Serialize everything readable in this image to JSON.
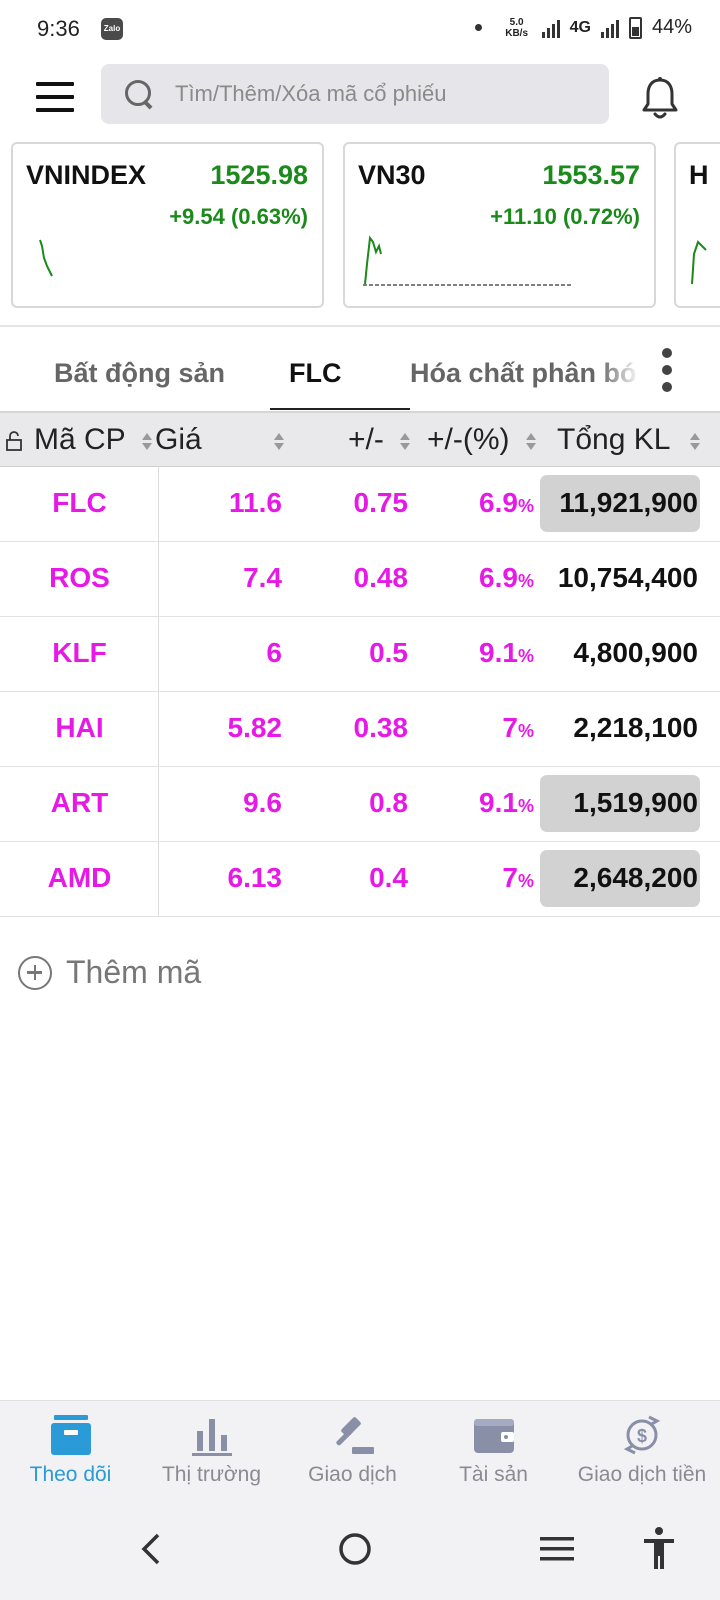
{
  "status_bar": {
    "time": "9:36",
    "notification_app": "Zalo",
    "speed_value": "5.0",
    "speed_unit": "KB/s",
    "network": "4G",
    "battery": "44%"
  },
  "search": {
    "placeholder": "Tìm/Thêm/Xóa mã cổ phiếu"
  },
  "index_cards": [
    {
      "name": "VNINDEX",
      "value": "1525.98",
      "change": "+9.54 (0.63%)"
    },
    {
      "name": "VN30",
      "value": "1553.57",
      "change": "+11.10 (0.72%)"
    },
    {
      "name": "H",
      "value": "",
      "change": ""
    }
  ],
  "tabs": [
    {
      "label": "Bất động sản",
      "active": false
    },
    {
      "label": "FLC",
      "active": true
    },
    {
      "label": "Hóa chất phân bó",
      "active": false
    }
  ],
  "table": {
    "headers": {
      "symbol": "Mã CP",
      "price": "Giá",
      "change": "+/-",
      "change_pct": "+/-(%)",
      "volume": "Tổng KL"
    },
    "pct_suffix": "%",
    "rows": [
      {
        "symbol": "FLC",
        "price": "11.6",
        "change": "0.75",
        "pct": "6.9",
        "volume": "11,921,900",
        "highlight": true
      },
      {
        "symbol": "ROS",
        "price": "7.4",
        "change": "0.48",
        "pct": "6.9",
        "volume": "10,754,400",
        "highlight": false
      },
      {
        "symbol": "KLF",
        "price": "6",
        "change": "0.5",
        "pct": "9.1",
        "volume": "4,800,900",
        "highlight": false
      },
      {
        "symbol": "HAI",
        "price": "5.82",
        "change": "0.38",
        "pct": "7",
        "volume": "2,218,100",
        "highlight": false
      },
      {
        "symbol": "ART",
        "price": "9.6",
        "change": "0.8",
        "pct": "9.1",
        "volume": "1,519,900",
        "highlight": true
      },
      {
        "symbol": "AMD",
        "price": "6.13",
        "change": "0.4",
        "pct": "7",
        "volume": "2,648,200",
        "highlight": true
      }
    ]
  },
  "add_code": {
    "label": "Thêm mã"
  },
  "bottom_nav": [
    {
      "label": "Theo dõi",
      "icon": "watchlist-icon",
      "active": true
    },
    {
      "label": "Thị trường",
      "icon": "bar-chart-icon",
      "active": false
    },
    {
      "label": "Giao dịch",
      "icon": "gavel-icon",
      "active": false
    },
    {
      "label": "Tài sản",
      "icon": "wallet-icon",
      "active": false
    },
    {
      "label": "Giao dịch tiền",
      "icon": "money-transfer-icon",
      "active": false
    }
  ],
  "colors": {
    "up": "#1a8a1a",
    "ceiling_magenta": "#e619e6",
    "active_nav": "#2a9bd6"
  }
}
